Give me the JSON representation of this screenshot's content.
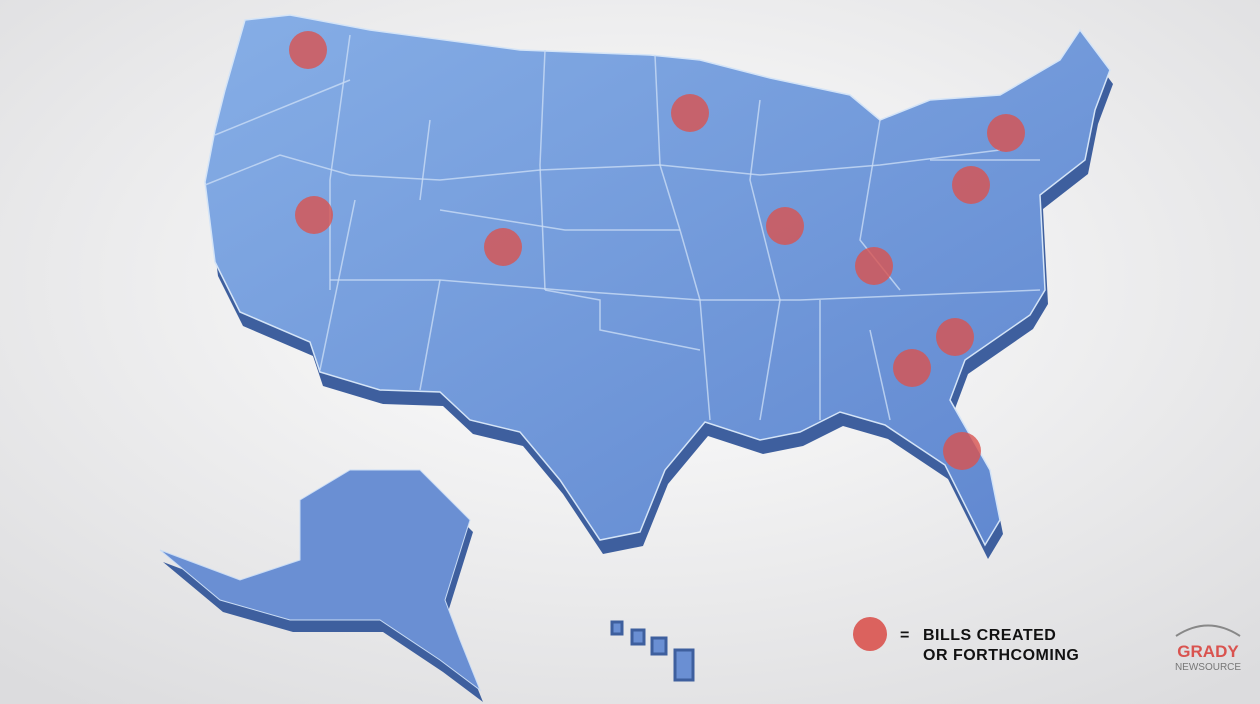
{
  "legend": {
    "symbol": "=",
    "lines": [
      "BILLS CREATED",
      "OR FORTHCOMING"
    ]
  },
  "logo": {
    "name": "GRADY",
    "subtitle": "NEWSOURCE"
  }
}
